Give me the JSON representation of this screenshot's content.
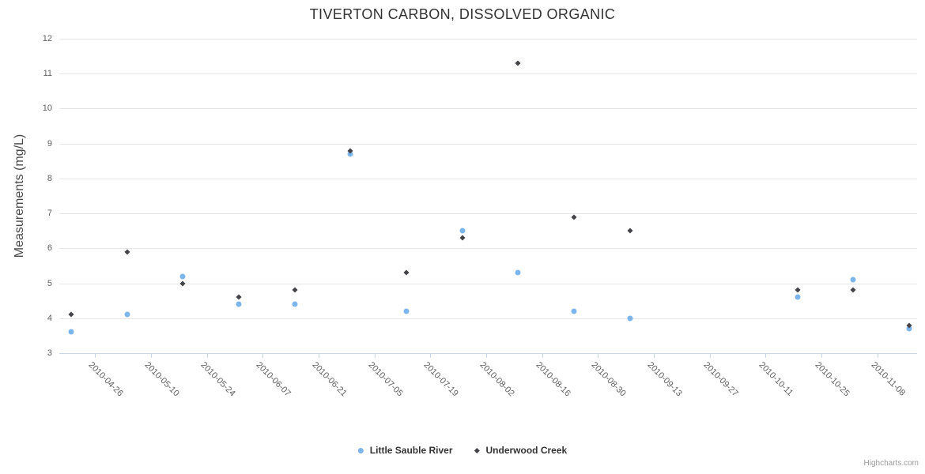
{
  "chart": {
    "title": "TIVERTON CARBON, DISSOLVED ORGANIC",
    "credits": "Highcharts.com"
  },
  "chart_data": {
    "type": "scatter",
    "title": "TIVERTON CARBON, DISSOLVED ORGANIC",
    "xlabel": "",
    "ylabel": "Measurements (mg/L)",
    "ylim": [
      3,
      12
    ],
    "y_ticks": [
      3,
      4,
      5,
      6,
      7,
      8,
      9,
      10,
      11,
      12
    ],
    "grid": "horizontal",
    "legend_position": "bottom-center",
    "x_axis": {
      "type": "date",
      "range": [
        "2010-04-17",
        "2010-11-18"
      ],
      "tick_labels": [
        "2010-04-26",
        "2010-05-10",
        "2010-05-24",
        "2010-06-07",
        "2010-06-21",
        "2010-07-05",
        "2010-07-19",
        "2010-08-02",
        "2010-08-16",
        "2010-08-30",
        "2010-09-13",
        "2010-09-27",
        "2010-10-11",
        "2010-10-25",
        "2010-11-08"
      ]
    },
    "series": [
      {
        "name": "Little Sauble River",
        "marker": "circle",
        "color": "#7cb5ec",
        "x": [
          "2010-04-20",
          "2010-05-04",
          "2010-05-18",
          "2010-06-01",
          "2010-06-15",
          "2010-06-29",
          "2010-07-13",
          "2010-07-27",
          "2010-08-10",
          "2010-08-24",
          "2010-09-07",
          "2010-10-19",
          "2010-11-02",
          "2010-11-16"
        ],
        "values": [
          3.6,
          4.1,
          5.2,
          4.4,
          4.4,
          8.7,
          4.2,
          6.5,
          5.3,
          4.2,
          4.0,
          4.6,
          5.1,
          3.7
        ]
      },
      {
        "name": "Underwood Creek",
        "marker": "diamond",
        "color": "#434348",
        "x": [
          "2010-04-20",
          "2010-05-04",
          "2010-05-18",
          "2010-06-01",
          "2010-06-15",
          "2010-06-29",
          "2010-07-13",
          "2010-07-27",
          "2010-08-10",
          "2010-08-24",
          "2010-09-07",
          "2010-10-19",
          "2010-11-02",
          "2010-11-16"
        ],
        "values": [
          4.1,
          5.9,
          5.0,
          4.6,
          4.8,
          8.8,
          5.3,
          6.3,
          11.3,
          6.9,
          6.5,
          4.8,
          4.8,
          3.8
        ]
      }
    ]
  },
  "colors": {
    "title": "#333333",
    "axis_label": "#606060",
    "gridline": "#e6e6e6",
    "axis_line": "#ccd6eb",
    "series_blue": "#7cb5ec",
    "series_dark": "#434348",
    "credits": "#999999"
  }
}
